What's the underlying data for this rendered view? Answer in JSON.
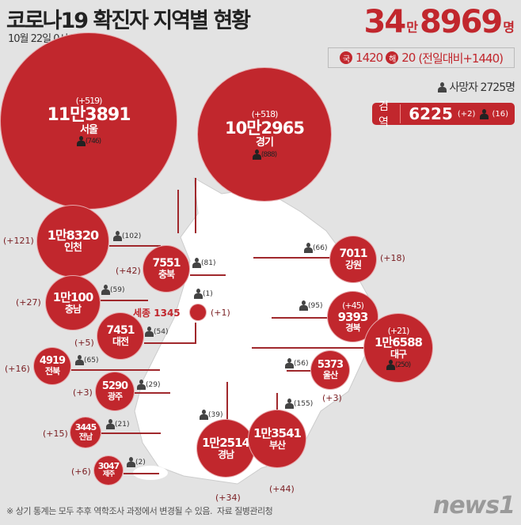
{
  "header": {
    "title": "코로나19 확진자 지역별 현황",
    "subtitle": "10월 22일 0시 기준"
  },
  "total": {
    "man": "34",
    "man_unit": "만",
    "rest": "8969",
    "unit": "명"
  },
  "daily": {
    "domestic_badge": "국",
    "domestic": "1420",
    "overseas_badge": "해",
    "overseas": "20",
    "change": "(전일대비+1440)"
  },
  "deaths": {
    "label": "사망자 2725명"
  },
  "quarantine": {
    "label": "검역",
    "value": "6225",
    "change": "(+2)",
    "deaths": "(16)"
  },
  "regions": {
    "seoul": {
      "name": "서울",
      "value": "11만3891",
      "change": "(+519)",
      "deaths": "(746)"
    },
    "gyeonggi": {
      "name": "경기",
      "value": "10만2965",
      "change": "(+518)",
      "deaths": "(888)"
    },
    "incheon": {
      "name": "인천",
      "value": "1만8320",
      "change": "(+121)",
      "deaths": "(102)"
    },
    "chungbuk": {
      "name": "충북",
      "value": "7551",
      "change": "(+42)",
      "deaths": "(81)"
    },
    "chungnam": {
      "name": "충남",
      "value": "1만100",
      "change": "(+27)",
      "deaths": "(59)"
    },
    "sejong": {
      "name": "세종 1345",
      "change": "(+1)",
      "deaths": "(1)"
    },
    "daejeon": {
      "name": "대전",
      "value": "7451",
      "change": "(+5)",
      "deaths": "(54)"
    },
    "jeonbuk": {
      "name": "전북",
      "value": "4919",
      "change": "(+16)",
      "deaths": "(65)"
    },
    "gwangju": {
      "name": "광주",
      "value": "5290",
      "change": "(+3)",
      "deaths": "(29)"
    },
    "jeonnam": {
      "name": "전남",
      "value": "3445",
      "change": "(+15)",
      "deaths": "(21)"
    },
    "jeju": {
      "name": "제주",
      "value": "3047",
      "change": "(+6)",
      "deaths": "(2)"
    },
    "gyeongnam": {
      "name": "경남",
      "value": "1만2514",
      "change": "(+34)",
      "deaths": "(39)"
    },
    "busan": {
      "name": "부산",
      "value": "1만3541",
      "change": "(+44)",
      "deaths": "(155)"
    },
    "gangwon": {
      "name": "강원",
      "value": "7011",
      "change": "(+18)",
      "deaths": "(66)"
    },
    "gyeongbuk": {
      "name": "경북",
      "value": "9393",
      "change": "(+45)",
      "deaths": "(95)"
    },
    "daegu": {
      "name": "대구",
      "value": "1만6588",
      "change": "(+21)",
      "deaths": "(250)"
    },
    "ulsan": {
      "name": "울산",
      "value": "5373",
      "change": "(+3)",
      "deaths": "(56)"
    }
  },
  "footer": {
    "note": "※ 상기 통계는 모두 추후 역학조사 과정에서 변경될 수 있음.",
    "source": "자료 질병관리청"
  },
  "logo": "news1",
  "colors": {
    "accent": "#c1272d",
    "background": "#e3e3e3",
    "map": "#ffffff"
  }
}
